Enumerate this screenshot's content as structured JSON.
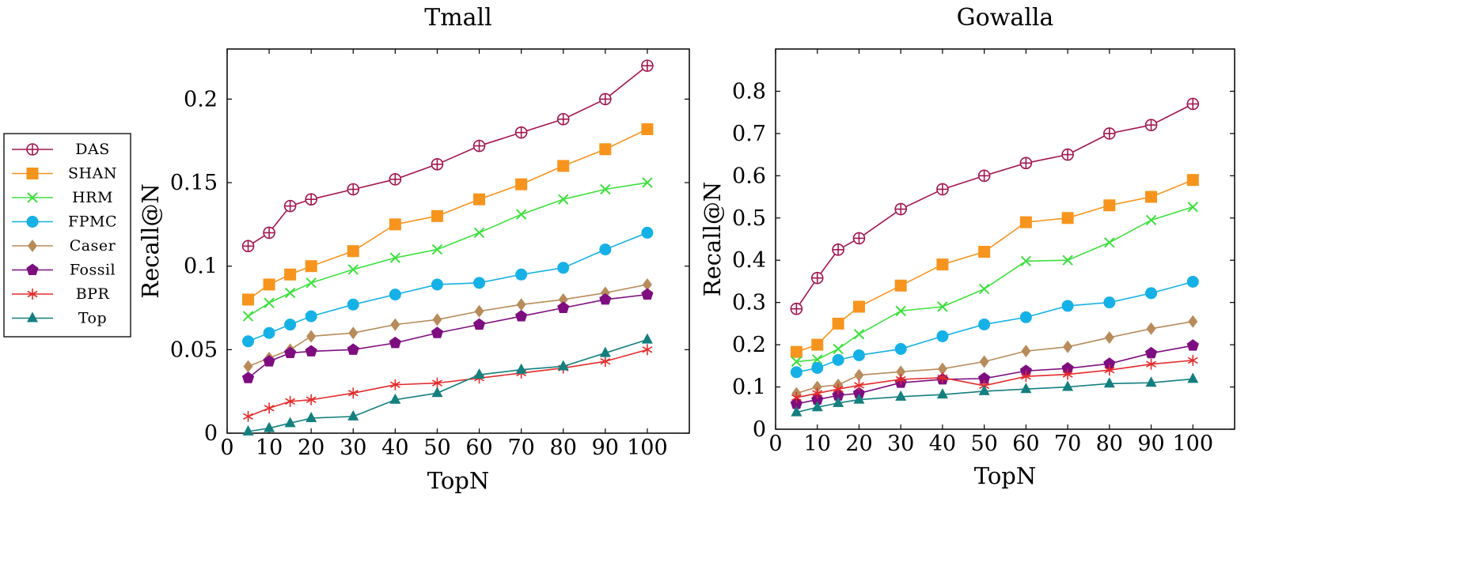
{
  "legend": {
    "entries": [
      {
        "name": "DAS",
        "color": "#a3154f",
        "marker": "circle-plus"
      },
      {
        "name": "SHAN",
        "color": "#f7941d",
        "marker": "square"
      },
      {
        "name": "HRM",
        "color": "#3ee03e",
        "marker": "x"
      },
      {
        "name": "FPMC",
        "color": "#15b1e6",
        "marker": "circle"
      },
      {
        "name": "Caser",
        "color": "#b88b5a",
        "marker": "diamond"
      },
      {
        "name": "Fossil",
        "color": "#7e0d80",
        "marker": "pentagon"
      },
      {
        "name": "BPR",
        "color": "#e32b2b",
        "marker": "star"
      },
      {
        "name": "Top",
        "color": "#147f7f",
        "marker": "triangle"
      }
    ]
  },
  "chart_data": [
    {
      "type": "line",
      "title": "Tmall",
      "xlabel": "TopN",
      "ylabel": "Recall@N",
      "xlim": [
        0,
        110
      ],
      "ylim": [
        0,
        0.23
      ],
      "xticks": [
        0,
        10,
        20,
        30,
        40,
        50,
        60,
        70,
        80,
        90,
        100
      ],
      "yticks": [
        0,
        0.05,
        0.1,
        0.15,
        0.2
      ],
      "ytick_labels": [
        "0",
        "0.05",
        "0.1",
        "0.15",
        "0.2"
      ],
      "x": [
        5,
        10,
        15,
        20,
        30,
        40,
        50,
        60,
        70,
        80,
        90,
        100
      ],
      "series": [
        {
          "name": "DAS",
          "values": [
            0.112,
            0.12,
            0.136,
            0.14,
            0.146,
            0.152,
            0.161,
            0.172,
            0.18,
            0.188,
            0.2,
            0.22
          ]
        },
        {
          "name": "SHAN",
          "values": [
            0.08,
            0.089,
            0.095,
            0.1,
            0.109,
            0.125,
            0.13,
            0.14,
            0.149,
            0.16,
            0.17,
            0.182
          ]
        },
        {
          "name": "HRM",
          "values": [
            0.07,
            0.078,
            0.084,
            0.09,
            0.098,
            0.105,
            0.11,
            0.12,
            0.131,
            0.14,
            0.146,
            0.15
          ]
        },
        {
          "name": "FPMC",
          "values": [
            0.055,
            0.06,
            0.065,
            0.07,
            0.077,
            0.083,
            0.089,
            0.09,
            0.095,
            0.099,
            0.11,
            0.12
          ]
        },
        {
          "name": "Caser",
          "values": [
            0.04,
            0.045,
            0.05,
            0.058,
            0.06,
            0.065,
            0.068,
            0.073,
            0.077,
            0.08,
            0.084,
            0.089
          ]
        },
        {
          "name": "Fossil",
          "values": [
            0.033,
            0.043,
            0.048,
            0.049,
            0.05,
            0.054,
            0.06,
            0.065,
            0.07,
            0.075,
            0.08,
            0.083
          ]
        },
        {
          "name": "BPR",
          "values": [
            0.01,
            0.015,
            0.019,
            0.02,
            0.024,
            0.029,
            0.03,
            0.033,
            0.036,
            0.039,
            0.043,
            0.05
          ]
        },
        {
          "name": "Top",
          "values": [
            0.001,
            0.003,
            0.006,
            0.009,
            0.01,
            0.02,
            0.024,
            0.035,
            0.038,
            0.04,
            0.048,
            0.056
          ]
        }
      ]
    },
    {
      "type": "line",
      "title": "Gowalla",
      "xlabel": "TopN",
      "ylabel": "Recall@N",
      "xlim": [
        0,
        110
      ],
      "ylim": [
        0,
        0.9
      ],
      "xticks": [
        0,
        10,
        20,
        30,
        40,
        50,
        60,
        70,
        80,
        90,
        100
      ],
      "yticks": [
        0,
        0.1,
        0.2,
        0.3,
        0.4,
        0.5,
        0.6,
        0.7,
        0.8
      ],
      "ytick_labels": [
        "0",
        "0.1",
        "0.2",
        "0.3",
        "0.4",
        "0.5",
        "0.6",
        "0.7",
        "0.8"
      ],
      "x": [
        5,
        10,
        15,
        20,
        30,
        40,
        50,
        60,
        70,
        80,
        90,
        100
      ],
      "series": [
        {
          "name": "DAS",
          "values": [
            0.285,
            0.358,
            0.425,
            0.452,
            0.521,
            0.568,
            0.6,
            0.63,
            0.65,
            0.7,
            0.72,
            0.77
          ]
        },
        {
          "name": "SHAN",
          "values": [
            0.183,
            0.2,
            0.25,
            0.29,
            0.34,
            0.39,
            0.42,
            0.49,
            0.5,
            0.53,
            0.55,
            0.59
          ]
        },
        {
          "name": "HRM",
          "values": [
            0.16,
            0.165,
            0.19,
            0.225,
            0.28,
            0.29,
            0.332,
            0.398,
            0.4,
            0.442,
            0.495,
            0.526
          ]
        },
        {
          "name": "FPMC",
          "values": [
            0.135,
            0.145,
            0.164,
            0.175,
            0.19,
            0.22,
            0.248,
            0.265,
            0.292,
            0.3,
            0.322,
            0.349
          ]
        },
        {
          "name": "Caser",
          "values": [
            0.085,
            0.1,
            0.105,
            0.128,
            0.136,
            0.143,
            0.16,
            0.185,
            0.195,
            0.217,
            0.238,
            0.255
          ]
        },
        {
          "name": "Fossil",
          "values": [
            0.06,
            0.07,
            0.08,
            0.085,
            0.11,
            0.118,
            0.12,
            0.138,
            0.144,
            0.155,
            0.18,
            0.198
          ]
        },
        {
          "name": "BPR",
          "values": [
            0.075,
            0.085,
            0.095,
            0.104,
            0.118,
            0.122,
            0.103,
            0.125,
            0.13,
            0.14,
            0.154,
            0.163
          ]
        },
        {
          "name": "Top",
          "values": [
            0.04,
            0.052,
            0.062,
            0.07,
            0.077,
            0.082,
            0.09,
            0.095,
            0.1,
            0.108,
            0.11,
            0.119
          ]
        }
      ]
    }
  ]
}
